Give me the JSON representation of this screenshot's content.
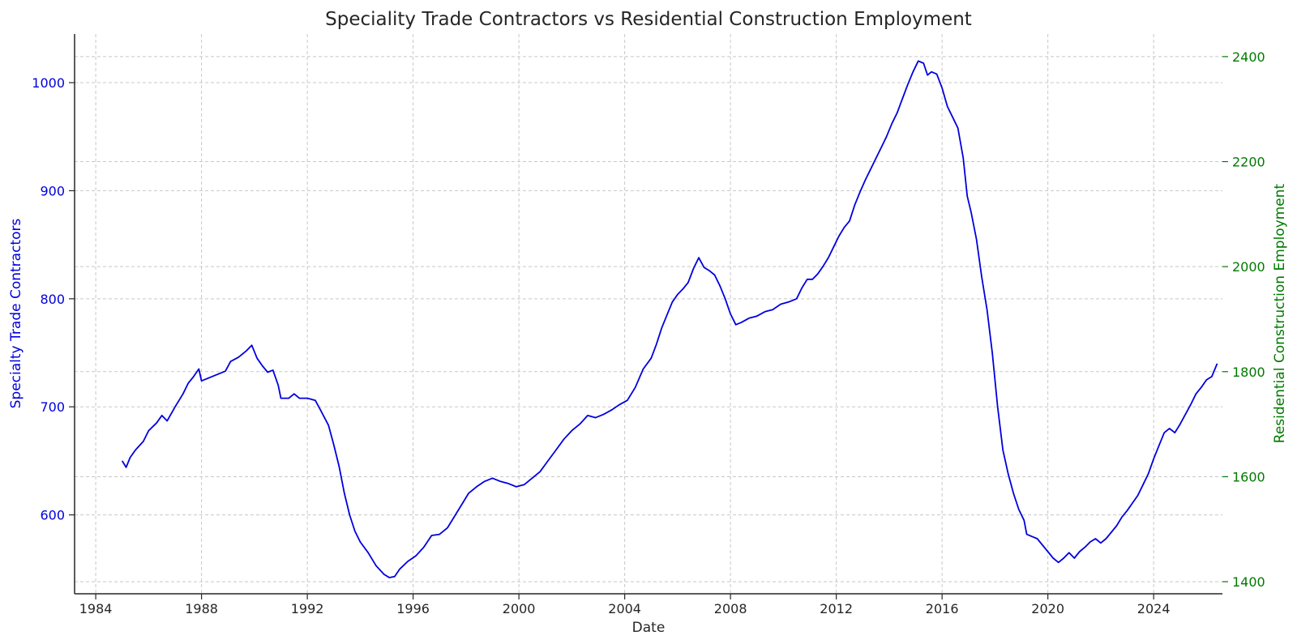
{
  "chart_data": {
    "type": "line",
    "title": "Speciality Trade Contractors vs Residential Construction Employment",
    "xlabel": "Date",
    "ylabel_left": "Specialty Trade Contractors",
    "ylabel_right": "Residential Construction Employment",
    "xlim": [
      1983.2,
      2026.6
    ],
    "ylim_left": [
      527,
      1045
    ],
    "ylim_right": [
      1377,
      2443
    ],
    "x_ticks": [
      "1984",
      "1988",
      "1992",
      "1996",
      "2000",
      "2004",
      "2008",
      "2012",
      "2016",
      "2020",
      "2024"
    ],
    "y_left_ticks": [
      "600",
      "700",
      "800",
      "900",
      "1000"
    ],
    "y_right_ticks": [
      "1400",
      "1600",
      "1800",
      "2000",
      "2200",
      "2400"
    ],
    "grid": true,
    "colors": {
      "left": "#0000dd",
      "right": "#007a00",
      "axis": "#262626"
    },
    "series": [
      {
        "axis": "left",
        "points": [
          [
            1985.0,
            650
          ],
          [
            1985.15,
            644
          ],
          [
            1985.3,
            653
          ],
          [
            1985.5,
            660
          ],
          [
            1985.8,
            668
          ],
          [
            1986.0,
            678
          ],
          [
            1986.3,
            685
          ],
          [
            1986.5,
            692
          ],
          [
            1986.7,
            687
          ],
          [
            1987.0,
            700
          ],
          [
            1987.3,
            712
          ],
          [
            1987.5,
            722
          ],
          [
            1987.7,
            728
          ],
          [
            1987.9,
            735
          ],
          [
            1988.0,
            724
          ],
          [
            1988.3,
            727
          ],
          [
            1988.6,
            730
          ],
          [
            1988.9,
            733
          ],
          [
            1989.1,
            742
          ],
          [
            1989.4,
            746
          ],
          [
            1989.7,
            752
          ],
          [
            1989.9,
            757
          ],
          [
            1990.1,
            745
          ],
          [
            1990.3,
            738
          ],
          [
            1990.5,
            732
          ],
          [
            1990.7,
            734
          ],
          [
            1990.9,
            720
          ],
          [
            1991.0,
            708
          ],
          [
            1991.3,
            708
          ],
          [
            1991.5,
            712
          ],
          [
            1991.7,
            708
          ],
          [
            1992.0,
            708
          ],
          [
            1992.3,
            706
          ],
          [
            1992.5,
            697
          ],
          [
            1992.8,
            683
          ],
          [
            1993.0,
            665
          ],
          [
            1993.2,
            645
          ],
          [
            1993.4,
            620
          ],
          [
            1993.6,
            600
          ],
          [
            1993.8,
            585
          ],
          [
            1994.0,
            575
          ],
          [
            1994.3,
            565
          ],
          [
            1994.6,
            553
          ],
          [
            1994.9,
            545
          ],
          [
            1995.1,
            542
          ],
          [
            1995.3,
            543
          ],
          [
            1995.5,
            550
          ],
          [
            1995.8,
            557
          ],
          [
            1996.1,
            562
          ],
          [
            1996.4,
            570
          ],
          [
            1996.7,
            581
          ],
          [
            1997.0,
            582
          ],
          [
            1997.3,
            588
          ],
          [
            1997.6,
            600
          ],
          [
            1997.9,
            612
          ],
          [
            1998.1,
            620
          ],
          [
            1998.4,
            626
          ],
          [
            1998.7,
            631
          ],
          [
            1999.0,
            634
          ],
          [
            1999.3,
            631
          ],
          [
            1999.6,
            629
          ],
          [
            1999.9,
            626
          ],
          [
            2000.2,
            628
          ],
          [
            2000.5,
            634
          ],
          [
            2000.8,
            640
          ],
          [
            2001.1,
            650
          ],
          [
            2001.4,
            660
          ],
          [
            2001.7,
            670
          ],
          [
            2002.0,
            678
          ],
          [
            2002.3,
            684
          ],
          [
            2002.6,
            692
          ],
          [
            2002.9,
            690
          ],
          [
            2003.2,
            693
          ],
          [
            2003.5,
            697
          ],
          [
            2003.8,
            702
          ],
          [
            2004.1,
            706
          ],
          [
            2004.4,
            718
          ],
          [
            2004.7,
            735
          ],
          [
            2005.0,
            745
          ],
          [
            2005.2,
            758
          ],
          [
            2005.4,
            773
          ],
          [
            2005.6,
            785
          ],
          [
            2005.8,
            797
          ],
          [
            2006.0,
            804
          ],
          [
            2006.2,
            809
          ],
          [
            2006.4,
            815
          ],
          [
            2006.6,
            828
          ],
          [
            2006.8,
            838
          ],
          [
            2007.0,
            829
          ],
          [
            2007.2,
            826
          ],
          [
            2007.4,
            822
          ],
          [
            2007.6,
            812
          ],
          [
            2007.8,
            800
          ],
          [
            2008.0,
            786
          ],
          [
            2008.2,
            776
          ],
          [
            2008.4,
            778
          ],
          [
            2008.7,
            782
          ],
          [
            2009.0,
            784
          ],
          [
            2009.3,
            788
          ],
          [
            2009.6,
            790
          ],
          [
            2009.9,
            795
          ],
          [
            2010.2,
            797
          ],
          [
            2010.5,
            800
          ],
          [
            2010.7,
            810
          ],
          [
            2010.9,
            818
          ],
          [
            2011.1,
            818
          ],
          [
            2011.3,
            823
          ],
          [
            2011.5,
            830
          ],
          [
            2011.7,
            838
          ],
          [
            2011.9,
            848
          ],
          [
            2012.1,
            858
          ],
          [
            2012.3,
            866
          ],
          [
            2012.5,
            872
          ],
          [
            2012.7,
            887
          ],
          [
            2012.9,
            899
          ],
          [
            2013.1,
            910
          ],
          [
            2013.3,
            920
          ],
          [
            2013.5,
            930
          ],
          [
            2013.7,
            940
          ],
          [
            2013.9,
            950
          ],
          [
            2014.1,
            962
          ],
          [
            2014.3,
            972
          ],
          [
            2014.5,
            985
          ],
          [
            2014.7,
            998
          ],
          [
            2014.9,
            1010
          ],
          [
            2015.1,
            1020
          ],
          [
            2015.3,
            1018
          ],
          [
            2015.45,
            1007
          ],
          [
            2015.6,
            1010
          ],
          [
            2015.8,
            1008
          ],
          [
            2016.0,
            995
          ],
          [
            2016.2,
            978
          ],
          [
            2016.4,
            968
          ],
          [
            2016.6,
            958
          ],
          [
            2016.8,
            930
          ],
          [
            2016.95,
            895
          ],
          [
            2017.1,
            880
          ],
          [
            2017.3,
            855
          ],
          [
            2017.5,
            820
          ],
          [
            2017.7,
            790
          ],
          [
            2017.9,
            750
          ],
          [
            2018.1,
            700
          ],
          [
            2018.3,
            660
          ],
          [
            2018.5,
            638
          ],
          [
            2018.7,
            620
          ],
          [
            2018.9,
            605
          ],
          [
            2019.1,
            595
          ],
          [
            2019.2,
            582
          ],
          [
            2019.4,
            580
          ],
          [
            2019.6,
            578
          ],
          [
            2019.8,
            572
          ],
          [
            2020.0,
            566
          ],
          [
            2020.2,
            560
          ],
          [
            2020.4,
            556
          ],
          [
            2020.6,
            560
          ],
          [
            2020.8,
            565
          ],
          [
            2021.0,
            560
          ],
          [
            2021.2,
            566
          ],
          [
            2021.4,
            570
          ],
          [
            2021.6,
            575
          ],
          [
            2021.8,
            578
          ],
          [
            2022.0,
            574
          ],
          [
            2022.2,
            578
          ],
          [
            2022.4,
            584
          ],
          [
            2022.6,
            590
          ],
          [
            2022.8,
            598
          ],
          [
            2023.0,
            604
          ],
          [
            2023.2,
            611
          ],
          [
            2023.4,
            618
          ],
          [
            2023.6,
            628
          ],
          [
            2023.8,
            638
          ],
          [
            2024.0,
            652
          ],
          [
            2024.2,
            664
          ],
          [
            2024.4,
            676
          ],
          [
            2024.6,
            680
          ],
          [
            2024.8,
            676
          ],
          [
            2025.0,
            684
          ],
          [
            2025.2,
            693
          ],
          [
            2025.4,
            702
          ],
          [
            2025.6,
            712
          ],
          [
            2025.8,
            718
          ],
          [
            2026.0,
            725
          ],
          [
            2026.2,
            728
          ],
          [
            2026.4,
            740
          ]
        ]
      }
    ]
  }
}
